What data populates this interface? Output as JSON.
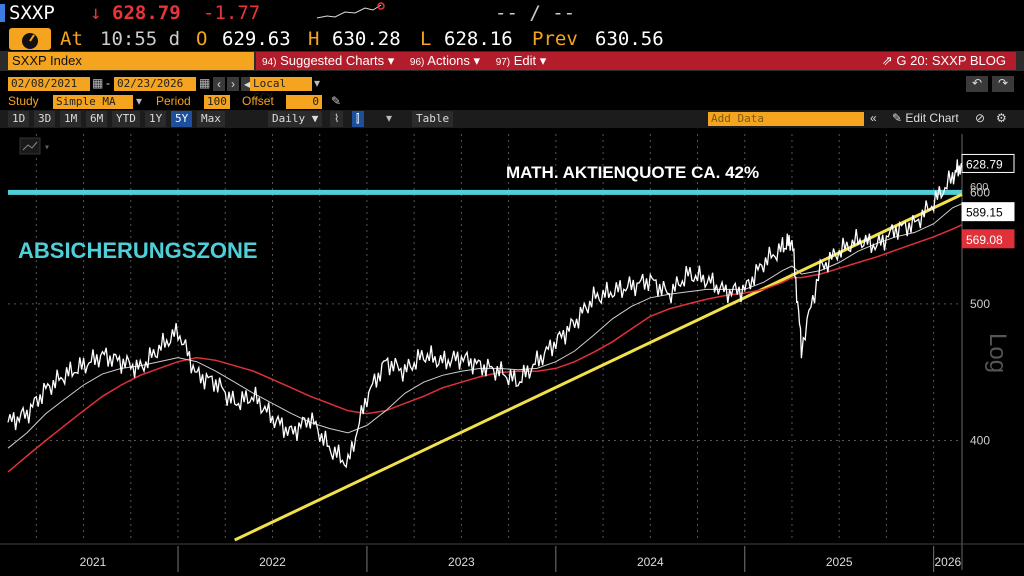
{
  "header": {
    "ticker": "SXXP",
    "arrow": "↓",
    "price": "628.79",
    "change": "-1.77",
    "bidask": "-- / --",
    "at_label": "At",
    "time": "10:55 d",
    "open_label": "O",
    "open": "629.63",
    "high_label": "H",
    "high": "630.28",
    "low_label": "L",
    "low": "628.16",
    "prev_label": "Prev",
    "prev": "630.56"
  },
  "toolbar": {
    "index_name": "SXXP Index",
    "suggested_num": "94)",
    "suggested": "Suggested Charts",
    "actions_num": "96)",
    "actions": "Actions",
    "edit_num": "97)",
    "edit": "Edit",
    "blog": "G 20: SXXP BLOG"
  },
  "controls": {
    "start_date": "02/08/2021",
    "end_date": "02/23/2026",
    "currency": "Local CCY",
    "study_label": "Study",
    "study_value": "Simple MA",
    "period_label": "Period",
    "period_value": "100",
    "offset_label": "Offset",
    "offset_value": "0",
    "ranges": [
      "1D",
      "3D",
      "1M",
      "6M",
      "YTD",
      "1Y",
      "5Y",
      "Max"
    ],
    "active_range": "5Y",
    "frequency": "Daily",
    "table": "Table",
    "add_data_placeholder": "Add Data",
    "edit_chart": "Edit Chart"
  },
  "annotations": {
    "math": "MATH. AKTIENQUOTE CA. 42%",
    "zone": "ABSICHERUNGSZONE"
  },
  "colors": {
    "price": "#ffffff",
    "ma_short": "#cfcfcf",
    "ma_long": "#e0303a",
    "trendline": "#f2e14b",
    "hline": "#4fd0d8",
    "accent": "#f4a41f"
  },
  "chart_data": {
    "type": "line",
    "scale": "log",
    "ylim": [
      340,
      660
    ],
    "yticks": [
      400,
      500,
      600
    ],
    "ylabel": "Log",
    "xticks": [
      "2021",
      "2022",
      "2023",
      "2024",
      "2025",
      "2026"
    ],
    "xrange_years": [
      2021.1,
      2026.15
    ],
    "x_year": [
      2021.1,
      2021.2,
      2021.3,
      2021.4,
      2021.5,
      2021.6,
      2021.7,
      2021.8,
      2021.9,
      2022.0,
      2022.1,
      2022.2,
      2022.3,
      2022.4,
      2022.5,
      2022.6,
      2022.7,
      2022.8,
      2022.9,
      2023.0,
      2023.1,
      2023.2,
      2023.3,
      2023.4,
      2023.5,
      2023.6,
      2023.7,
      2023.8,
      2023.9,
      2024.0,
      2024.1,
      2024.2,
      2024.3,
      2024.4,
      2024.5,
      2024.6,
      2024.7,
      2024.8,
      2024.9,
      2025.0,
      2025.1,
      2025.2,
      2025.25,
      2025.3,
      2025.4,
      2025.5,
      2025.6,
      2025.7,
      2025.8,
      2025.9,
      2026.0,
      2026.1,
      2026.15
    ],
    "series": [
      {
        "name": "",
        "role": "price",
        "values": [
          412,
          418,
          435,
          445,
          452,
          460,
          455,
          450,
          465,
          478,
          445,
          440,
          425,
          430,
          415,
          405,
          415,
          395,
          385,
          430,
          455,
          448,
          460,
          455,
          458,
          452,
          448,
          440,
          455,
          470,
          485,
          505,
          510,
          515,
          520,
          508,
          525,
          520,
          510,
          512,
          535,
          548,
          555,
          465,
          530,
          545,
          555,
          550,
          565,
          570,
          590,
          615,
          629
        ]
      },
      {
        "name": "",
        "role": "ma_short",
        "values": [
          395,
          405,
          418,
          428,
          438,
          446,
          450,
          452,
          455,
          458,
          455,
          448,
          440,
          432,
          425,
          418,
          412,
          408,
          405,
          410,
          420,
          432,
          440,
          445,
          448,
          450,
          450,
          449,
          450,
          455,
          463,
          475,
          488,
          498,
          505,
          508,
          510,
          512,
          512,
          512,
          518,
          528,
          532,
          525,
          528,
          535,
          545,
          552,
          558,
          562,
          570,
          585,
          589
        ]
      },
      {
        "name": "",
        "role": "ma_long",
        "values": [
          380,
          390,
          400,
          410,
          420,
          430,
          438,
          445,
          450,
          455,
          458,
          456,
          452,
          448,
          442,
          436,
          430,
          425,
          420,
          418,
          420,
          425,
          430,
          436,
          440,
          444,
          447,
          448,
          448,
          450,
          455,
          462,
          470,
          480,
          490,
          496,
          500,
          504,
          507,
          509,
          512,
          518,
          522,
          522,
          525,
          530,
          535,
          540,
          546,
          552,
          558,
          565,
          569
        ]
      }
    ],
    "trendline": {
      "x": [
        2022.3,
        2026.15
      ],
      "y": [
        340,
        598
      ]
    },
    "hline": {
      "y": 600
    },
    "last_labels": [
      "628.79",
      "600",
      "589.15",
      "569.08"
    ]
  }
}
